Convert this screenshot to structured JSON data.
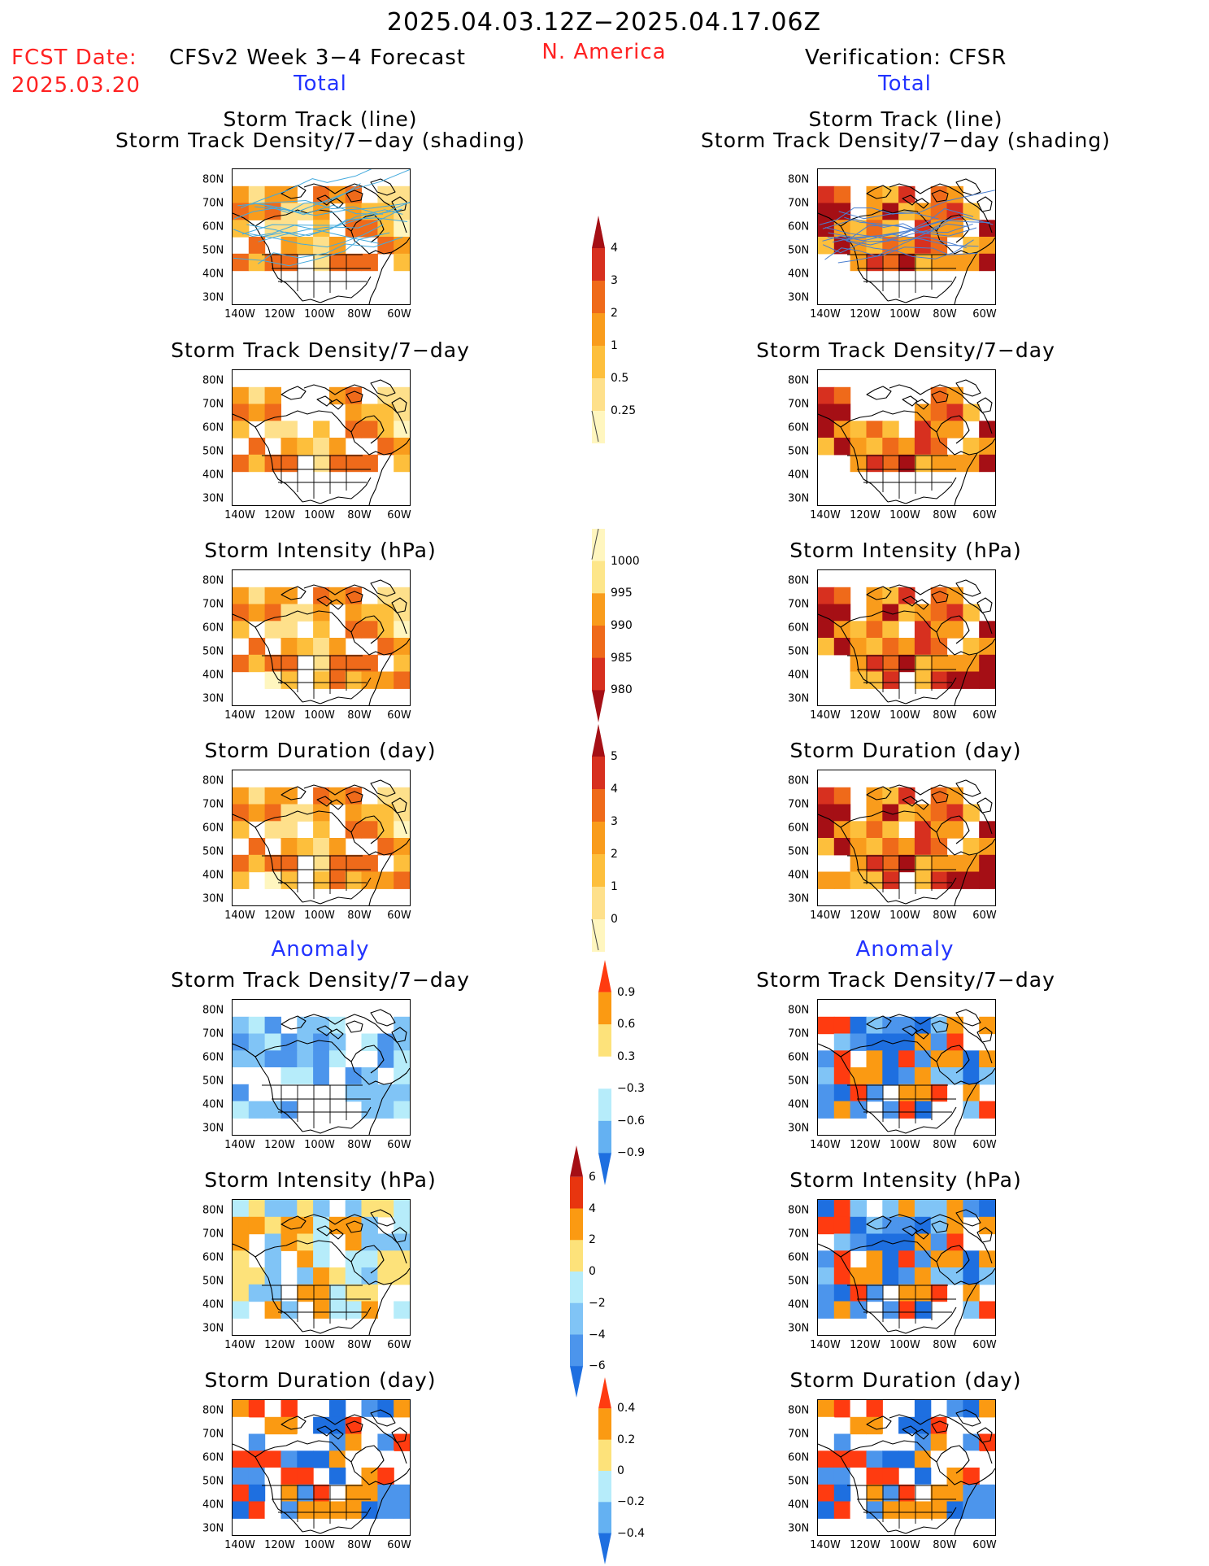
{
  "header": {
    "date_range": "2025.04.03.12Z−2025.04.17.06Z",
    "fcst_label": "FCST Date:",
    "fcst_date": "2025.03.20",
    "model": "CFSv2 Week 3−4 Forecast",
    "region": "N. America",
    "verification": "Verification: CFSR",
    "left_total": "Total",
    "right_total": "Total",
    "left_anomaly": "Anomaly",
    "right_anomaly": "Anomaly"
  },
  "axes": {
    "lat_labels": [
      "80N",
      "70N",
      "60N",
      "50N",
      "40N",
      "30N"
    ],
    "lon_labels": [
      "140W",
      "120W",
      "100W",
      "80W",
      "60W"
    ]
  },
  "panels": {
    "left": [
      {
        "title": "Storm Track (line)",
        "title2": "Storm Track Density/7−day (shading)"
      },
      {
        "title": "Storm Track Density/7−day"
      },
      {
        "title": "Storm Intensity (hPa)"
      },
      {
        "title": "Storm Duration (day)"
      },
      {
        "title": "Storm Track Density/7−day"
      },
      {
        "title": "Storm Intensity (hPa)"
      },
      {
        "title": "Storm Duration (day)"
      }
    ],
    "right": [
      {
        "title": "Storm Track (line)",
        "title2": "Storm Track Density/7−day (shading)"
      },
      {
        "title": "Storm Track Density/7−day"
      },
      {
        "title": "Storm Intensity (hPa)"
      },
      {
        "title": "Storm Duration (day)"
      },
      {
        "title": "Storm Track Density/7−day"
      },
      {
        "title": "Storm Intensity (hPa)"
      },
      {
        "title": "Storm Duration (day)"
      }
    ]
  },
  "colorbars": {
    "density": {
      "labels": [
        "4",
        "3",
        "2",
        "1",
        "0.5",
        "0.25"
      ],
      "colors": [
        "#a50f15",
        "#d7301f",
        "#ef6a1a",
        "#f99c1c",
        "#fdbf3c",
        "#fee08b",
        "#fff6bf"
      ]
    },
    "intensity": {
      "labels": [
        "1000",
        "995",
        "990",
        "985",
        "980"
      ],
      "colors": [
        "#fff6bf",
        "#fde68a",
        "#f99c1c",
        "#ef6a1a",
        "#d7301f",
        "#a50f15"
      ]
    },
    "duration": {
      "labels": [
        "5",
        "4",
        "3",
        "2",
        "1",
        "0"
      ],
      "colors": [
        "#a50f15",
        "#d7301f",
        "#ef6a1a",
        "#f99c1c",
        "#fdbf3c",
        "#fee08b",
        "#fff6bf"
      ]
    },
    "anom_density": {
      "labels": [
        "0.9",
        "0.6",
        "0.3",
        "−0.3",
        "−0.6",
        "−0.9"
      ],
      "colors": [
        "#ff3b10",
        "#fb9a12",
        "#fde27a",
        "#ffffff",
        "#b6ecfa",
        "#64b1f2",
        "#1e6fe0"
      ]
    },
    "anom_intensity": {
      "labels": [
        "6",
        "4",
        "2",
        "0",
        "−2",
        "−4",
        "−6"
      ],
      "colors": [
        "#a50f15",
        "#e8350f",
        "#fb9a12",
        "#fde27a",
        "#b6ecfa",
        "#80c4f6",
        "#4c95ec",
        "#1e6fe0"
      ]
    },
    "anom_duration": {
      "labels": [
        "0.4",
        "0.2",
        "0",
        "−0.2",
        "−0.4"
      ],
      "colors": [
        "#ff3b10",
        "#fb9a12",
        "#fde27a",
        "#b6ecfa",
        "#64b1f2",
        "#1e6fe0"
      ]
    }
  }
}
